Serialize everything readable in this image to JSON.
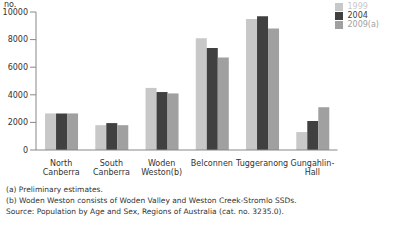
{
  "chart_data": {
    "type": "bar",
    "y_label": "no.",
    "categories": [
      "North Canberra",
      "South Canberra",
      "Woden Weston(b)",
      "Belconnen",
      "Tuggeranong",
      "Gungahlin-Hall"
    ],
    "series": [
      {
        "name": "1999",
        "color": "#c8c8c8",
        "values": [
          2650,
          1800,
          4500,
          8100,
          9500,
          1300
        ]
      },
      {
        "name": "2004",
        "color": "#404040",
        "values": [
          2650,
          1950,
          4200,
          7400,
          9700,
          2100
        ]
      },
      {
        "name": "2009(a)",
        "color": "#a0a0a0",
        "values": [
          2650,
          1800,
          4100,
          6700,
          8800,
          3100
        ]
      }
    ],
    "ylim": [
      0,
      10000
    ],
    "yticks": [
      0,
      2000,
      4000,
      6000,
      8000,
      10000
    ],
    "grid": false,
    "legend": "top-right",
    "annotations": [
      "(a) Preliminary estimates.",
      "(b) Woden Weston consists of Woden Valley and Weston Creek-Stromlo SSDs.",
      "Source: Population by Age and Sex, Regions of Australia (cat. no. 3235.0)."
    ]
  }
}
